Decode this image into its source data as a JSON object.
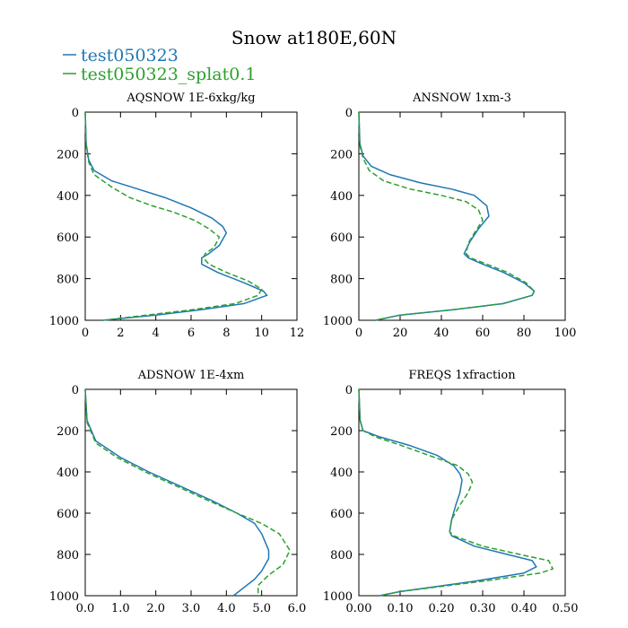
{
  "figure": {
    "title": "Snow at180E,60N",
    "legend": [
      {
        "name": "test050323",
        "color": "#1f77b4",
        "dash": "solid"
      },
      {
        "name": "test050323_splat0.1",
        "color": "#2ca02c",
        "dash": "dashed"
      }
    ]
  },
  "chart_data": [
    {
      "type": "line",
      "title": "AQSNOW  1E-6xkg/kg",
      "xlim": [
        0,
        12
      ],
      "xticks": [
        0,
        2,
        4,
        6,
        8,
        10,
        12
      ],
      "xtick_labels": [
        "0",
        "2",
        "4",
        "6",
        "8",
        "10",
        "12"
      ],
      "ylim": [
        1000,
        0
      ],
      "yticks": [
        0,
        200,
        400,
        600,
        800,
        1000
      ],
      "ytick_labels": [
        "0",
        "200",
        "400",
        "600",
        "800",
        "1000"
      ],
      "series": [
        {
          "name": "test050323",
          "color": "#1f77b4",
          "x": [
            0.0,
            0.05,
            0.2,
            0.5,
            1.5,
            3.0,
            4.5,
            6.0,
            7.2,
            7.8,
            8.0,
            7.6,
            7.0,
            6.6,
            6.6,
            7.5,
            9.0,
            10.1,
            10.3,
            9.0,
            6.5,
            4.0,
            1.0
          ],
          "y": [
            0,
            150,
            230,
            280,
            330,
            370,
            410,
            460,
            510,
            550,
            580,
            640,
            680,
            700,
            730,
            770,
            820,
            860,
            880,
            920,
            950,
            975,
            1000
          ]
        },
        {
          "name": "test050323_splat0.1",
          "color": "#2ca02c",
          "x": [
            0.0,
            0.05,
            0.2,
            0.5,
            1.5,
            2.5,
            3.8,
            5.0,
            6.2,
            7.0,
            7.6,
            7.3,
            6.8,
            6.7,
            7.0,
            8.0,
            9.2,
            10.0,
            9.8,
            8.5,
            6.0,
            3.5,
            1.0
          ],
          "y": [
            0,
            160,
            240,
            300,
            360,
            410,
            450,
            480,
            520,
            560,
            600,
            650,
            680,
            700,
            730,
            770,
            810,
            850,
            880,
            920,
            950,
            975,
            1000
          ]
        }
      ]
    },
    {
      "type": "line",
      "title": "ANSNOW  1xm-3",
      "xlim": [
        0,
        100
      ],
      "xticks": [
        0,
        20,
        40,
        60,
        80,
        100
      ],
      "xtick_labels": [
        "0",
        "20",
        "40",
        "60",
        "80",
        "100"
      ],
      "ylim": [
        1000,
        0
      ],
      "yticks": [
        0,
        200,
        400,
        600,
        800,
        1000
      ],
      "ytick_labels": [
        "0",
        "200",
        "400",
        "600",
        "800",
        "1000"
      ],
      "series": [
        {
          "name": "test050323",
          "color": "#1f77b4",
          "x": [
            0,
            0.5,
            2,
            6,
            15,
            30,
            45,
            56,
            62,
            63,
            58,
            54,
            51,
            53,
            60,
            70,
            80,
            85,
            84,
            70,
            45,
            20,
            8
          ],
          "y": [
            0,
            150,
            210,
            260,
            300,
            340,
            370,
            400,
            450,
            500,
            560,
            620,
            680,
            700,
            730,
            770,
            820,
            860,
            880,
            920,
            950,
            975,
            1000
          ]
        },
        {
          "name": "test050323_splat0.1",
          "color": "#2ca02c",
          "x": [
            0,
            0.5,
            2,
            5,
            12,
            25,
            40,
            52,
            58,
            60,
            56,
            53,
            52,
            54,
            62,
            72,
            81,
            85,
            84,
            70,
            45,
            20,
            8
          ],
          "y": [
            0,
            160,
            220,
            280,
            330,
            370,
            400,
            430,
            470,
            520,
            580,
            630,
            680,
            700,
            730,
            770,
            820,
            860,
            880,
            920,
            950,
            975,
            1000
          ]
        }
      ]
    },
    {
      "type": "line",
      "title": "ADSNOW  1E-4xm",
      "xlim": [
        0,
        6
      ],
      "xticks": [
        0,
        1,
        2,
        3,
        4,
        5,
        6
      ],
      "xtick_labels": [
        "0.0",
        "1.0",
        "2.0",
        "3.0",
        "4.0",
        "5.0",
        "6.0"
      ],
      "ylim": [
        1000,
        0
      ],
      "yticks": [
        0,
        200,
        400,
        600,
        800,
        1000
      ],
      "ytick_labels": [
        "0",
        "200",
        "400",
        "600",
        "800",
        "1000"
      ],
      "series": [
        {
          "name": "test050323",
          "color": "#1f77b4",
          "x": [
            0.0,
            0.05,
            0.3,
            1.0,
            1.8,
            2.7,
            3.6,
            4.3,
            4.8,
            5.0,
            5.1,
            5.2,
            5.2,
            5.0,
            4.8,
            4.5,
            4.2
          ],
          "y": [
            0,
            150,
            250,
            330,
            400,
            470,
            540,
            600,
            650,
            700,
            740,
            780,
            820,
            880,
            920,
            960,
            1000
          ]
        },
        {
          "name": "test050323_splat0.1",
          "color": "#2ca02c",
          "x": [
            0.0,
            0.05,
            0.3,
            0.9,
            1.7,
            2.6,
            3.5,
            4.3,
            5.0,
            5.5,
            5.8,
            5.6,
            5.2,
            4.9,
            4.9
          ],
          "y": [
            0,
            160,
            260,
            330,
            400,
            470,
            540,
            600,
            650,
            700,
            780,
            850,
            900,
            950,
            1000
          ]
        }
      ]
    },
    {
      "type": "line",
      "title": "FREQS  1xfraction",
      "xlim": [
        0,
        0.5
      ],
      "xticks": [
        0,
        0.1,
        0.2,
        0.3,
        0.4,
        0.5
      ],
      "xtick_labels": [
        "0.00",
        "0.10",
        "0.20",
        "0.30",
        "0.40",
        "0.50"
      ],
      "ylim": [
        1000,
        0
      ],
      "yticks": [
        0,
        200,
        400,
        600,
        800,
        1000
      ],
      "ytick_labels": [
        "0",
        "200",
        "400",
        "600",
        "800",
        "1000"
      ],
      "series": [
        {
          "name": "test050323",
          "color": "#1f77b4",
          "x": [
            0.0,
            0.003,
            0.01,
            0.05,
            0.12,
            0.19,
            0.23,
            0.245,
            0.25,
            0.245,
            0.235,
            0.225,
            0.22,
            0.225,
            0.28,
            0.36,
            0.42,
            0.43,
            0.4,
            0.28,
            0.1,
            0.05
          ],
          "y": [
            0,
            150,
            200,
            230,
            270,
            320,
            370,
            410,
            440,
            500,
            560,
            630,
            690,
            710,
            760,
            800,
            830,
            860,
            890,
            930,
            980,
            1000
          ]
        },
        {
          "name": "test050323_splat0.1",
          "color": "#2ca02c",
          "x": [
            0.0,
            0.003,
            0.01,
            0.04,
            0.1,
            0.17,
            0.24,
            0.265,
            0.275,
            0.265,
            0.245,
            0.225,
            0.22,
            0.23,
            0.3,
            0.39,
            0.46,
            0.47,
            0.44,
            0.3,
            0.1,
            0.05
          ],
          "y": [
            0,
            150,
            200,
            230,
            270,
            320,
            370,
            410,
            450,
            500,
            560,
            630,
            690,
            710,
            760,
            800,
            830,
            870,
            890,
            930,
            980,
            1000
          ]
        }
      ]
    }
  ]
}
